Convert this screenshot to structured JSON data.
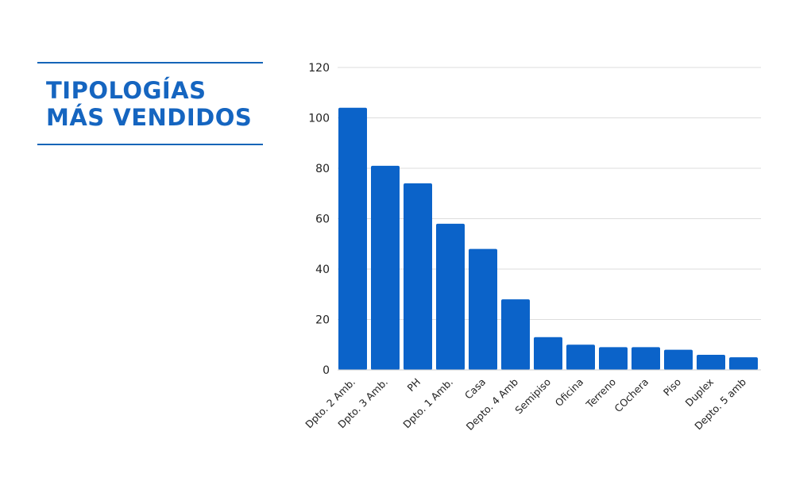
{
  "title": {
    "line1": "TIPOLOGÍAS",
    "line2": "MÁS VENDIDOS"
  },
  "colors": {
    "bar": "#0b63c9",
    "title": "#1565c0",
    "grid": "#dddddd"
  },
  "chart_data": {
    "type": "bar",
    "title": "TIPOLOGÍAS MÁS VENDIDOS",
    "xlabel": "",
    "ylabel": "",
    "ylim": [
      0,
      120
    ],
    "yticks": [
      0,
      20,
      40,
      60,
      80,
      100,
      120
    ],
    "grid": true,
    "categories": [
      "Dpto. 2 Amb.",
      "Dpto. 3 Amb.",
      "PH",
      "Dpto. 1 Amb.",
      "Casa",
      "Depto. 4 Amb",
      "Semipiso",
      "Oficina",
      "Terreno",
      "COchera",
      "Piso",
      "Duplex",
      "Depto. 5 amb"
    ],
    "values": [
      104,
      81,
      74,
      58,
      48,
      28,
      13,
      10,
      9,
      9,
      8,
      6,
      5
    ]
  }
}
